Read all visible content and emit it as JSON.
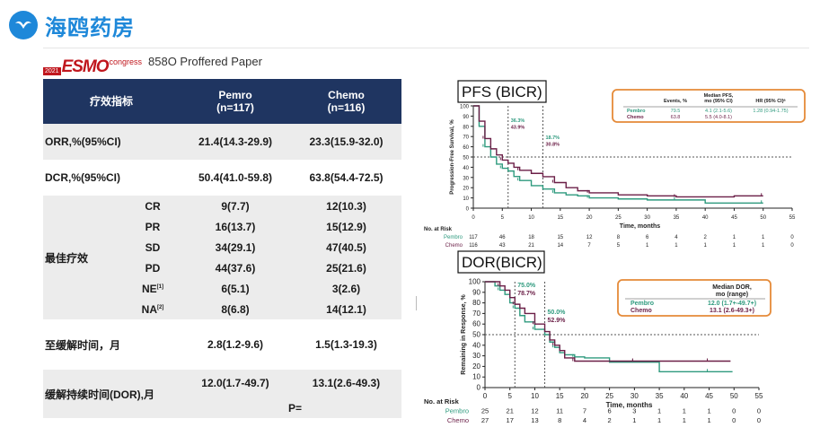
{
  "brand": {
    "name": "海鸥药房",
    "color": "#1e88d9"
  },
  "conference": {
    "year": "2021",
    "word": "ESMO",
    "suffix": "congress",
    "paper": "858O  Proffered Paper"
  },
  "table": {
    "header": {
      "label": "疗效指标",
      "pembro": "Pemro\n(n=117)",
      "chemo": "Chemo\n(n=116)"
    },
    "orr": {
      "label": "ORR,%(95%CI)",
      "pembro": "21.4(14.3-29.9)",
      "chemo": "23.3(15.9-32.0)"
    },
    "dcr": {
      "label": "DCR,%(95%CI)",
      "pembro": "50.4(41.0-59.8)",
      "chemo": "63.8(54.4-72.5)"
    },
    "best": {
      "label": "最佳疗效",
      "rows": [
        {
          "k": "CR",
          "p": "9(7.7)",
          "c": "12(10.3)"
        },
        {
          "k": "PR",
          "p": "16(13.7)",
          "c": "15(12.9)"
        },
        {
          "k": "SD",
          "p": "34(29.1)",
          "c": "47(40.5)"
        },
        {
          "k": "PD",
          "p": "44(37.6)",
          "c": "25(21.6)"
        },
        {
          "k": "NE",
          "sup": "[1]",
          "p": "6(5.1)",
          "c": "3(2.6)"
        },
        {
          "k": "NA",
          "sup": "[2]",
          "p": "8(6.8)",
          "c": "14(12.1)"
        }
      ]
    },
    "ttr": {
      "label": "至缓解时间，月",
      "pembro": "2.8(1.2-9.6)",
      "chemo": "1.5(1.3-19.3)"
    },
    "dor": {
      "label": "缓解持续时间(DOR),月",
      "pembro": "12.0(1.7-49.7)",
      "chemo": "13.1(2.6-49.3)",
      "p": "P="
    }
  },
  "pfs": {
    "title": "PFS (BICR)",
    "legend": {
      "headers": [
        "Events, %",
        "Median PFS,\nmo (95% CI)",
        "HR (95% CI)ᵃ"
      ],
      "rows": [
        {
          "name": "Pembro",
          "events": "79.5",
          "median": "4.1 (2.1-5.6)",
          "hr": "1.28 (0.94-1.75)"
        },
        {
          "name": "Chemo",
          "events": "63.8",
          "median": "5.5 (4.0-8.1)",
          "hr": ""
        }
      ]
    },
    "ylabel": "Progression-Free Survival, %",
    "xlabel": "Time, months",
    "yticks": [
      "0",
      "10",
      "20",
      "30",
      "40",
      "50",
      "60",
      "70",
      "80",
      "90",
      "100"
    ],
    "xticks": [
      "0",
      "5",
      "10",
      "15",
      "20",
      "25",
      "30",
      "35",
      "40",
      "45",
      "50",
      "55"
    ],
    "annot6": [
      "36.3%",
      "43.9%"
    ],
    "annot12": [
      "18.7%",
      "30.8%"
    ],
    "risk": {
      "title": "No. at Risk",
      "rows": [
        {
          "name": "Pembro",
          "vals": [
            "117",
            "46",
            "18",
            "15",
            "12",
            "8",
            "6",
            "4",
            "2",
            "1",
            "1",
            "0"
          ]
        },
        {
          "name": "Chemo",
          "vals": [
            "116",
            "43",
            "21",
            "14",
            "7",
            "5",
            "1",
            "1",
            "1",
            "1",
            "1",
            "0"
          ]
        }
      ]
    }
  },
  "dor": {
    "title": "DOR(BICR)",
    "legend": {
      "header": "Median DOR,\nmo (range)",
      "rows": [
        {
          "name": "Pembro",
          "val": "12.0 (1.7+-49.7+)"
        },
        {
          "name": "Chemo",
          "val": "13.1 (2.6-49.3+)"
        }
      ]
    },
    "ylabel": "Remaining in Response, %",
    "xlabel": "Time, months",
    "yticks": [
      "0",
      "10",
      "20",
      "30",
      "40",
      "50",
      "60",
      "70",
      "80",
      "90",
      "100"
    ],
    "xticks": [
      "0",
      "5",
      "10",
      "15",
      "20",
      "25",
      "30",
      "35",
      "40",
      "45",
      "50",
      "55"
    ],
    "annot6": [
      "75.0%",
      "78.7%"
    ],
    "annot12": [
      "50.0%",
      "52.9%"
    ],
    "risk": {
      "title": "No. at Risk",
      "rows": [
        {
          "name": "Pembro",
          "vals": [
            "25",
            "21",
            "12",
            "11",
            "7",
            "6",
            "3",
            "1",
            "1",
            "1",
            "0",
            "0"
          ]
        },
        {
          "name": "Chemo",
          "vals": [
            "27",
            "17",
            "13",
            "8",
            "4",
            "2",
            "1",
            "1",
            "1",
            "1",
            "0",
            "0"
          ]
        }
      ]
    }
  },
  "chart_data": [
    {
      "type": "line",
      "title": "PFS (BICR)",
      "xlabel": "Time, months",
      "ylabel": "Progression-Free Survival, %",
      "xlim": [
        0,
        55
      ],
      "ylim": [
        0,
        100
      ],
      "series": [
        {
          "name": "Pembro",
          "color": "#2e9a7e",
          "x": [
            0,
            1,
            2,
            3,
            4,
            5,
            6,
            7,
            8,
            10,
            12,
            14,
            16,
            18,
            20,
            25,
            30,
            35,
            40,
            45,
            50
          ],
          "y": [
            100,
            80,
            60,
            50,
            43,
            39,
            36.3,
            31,
            27,
            22,
            18.7,
            15,
            13,
            12,
            10,
            9,
            8,
            8,
            5,
            5,
            5
          ]
        },
        {
          "name": "Chemo",
          "color": "#6b1f47",
          "x": [
            0,
            1,
            2,
            3,
            4,
            5,
            6,
            7,
            8,
            10,
            12,
            14,
            16,
            18,
            20,
            25,
            30,
            35,
            40,
            45,
            50
          ],
          "y": [
            100,
            85,
            68,
            58,
            52,
            47,
            43.9,
            40,
            37,
            34,
            30.8,
            25,
            20,
            17,
            15,
            13,
            12,
            11,
            11,
            12,
            12
          ]
        }
      ]
    },
    {
      "type": "line",
      "title": "DOR(BICR)",
      "xlabel": "Time, months",
      "ylabel": "Remaining in Response, %",
      "xlim": [
        0,
        55
      ],
      "ylim": [
        0,
        100
      ],
      "series": [
        {
          "name": "Pembro",
          "color": "#2e9a7e",
          "x": [
            0,
            2,
            3,
            4,
            5,
            6,
            7,
            8,
            10,
            12,
            13,
            14,
            15,
            16,
            18,
            20,
            25,
            30,
            35,
            40,
            45,
            49.7
          ],
          "y": [
            100,
            96,
            92,
            88,
            80,
            75,
            68,
            62,
            55,
            50,
            43,
            38,
            33,
            31,
            29,
            28,
            24,
            24,
            15,
            15,
            15,
            15
          ]
        },
        {
          "name": "Chemo",
          "color": "#6b1f47",
          "x": [
            0,
            2,
            3,
            4,
            5,
            6,
            7,
            8,
            10,
            12,
            13,
            14,
            15,
            16,
            18,
            20,
            25,
            30,
            35,
            40,
            45,
            49.3
          ],
          "y": [
            100,
            100,
            96,
            92,
            85,
            78.7,
            75,
            70,
            60,
            52.9,
            45,
            40,
            35,
            28,
            25,
            25,
            25,
            25,
            25,
            25,
            25,
            25
          ]
        }
      ]
    }
  ]
}
